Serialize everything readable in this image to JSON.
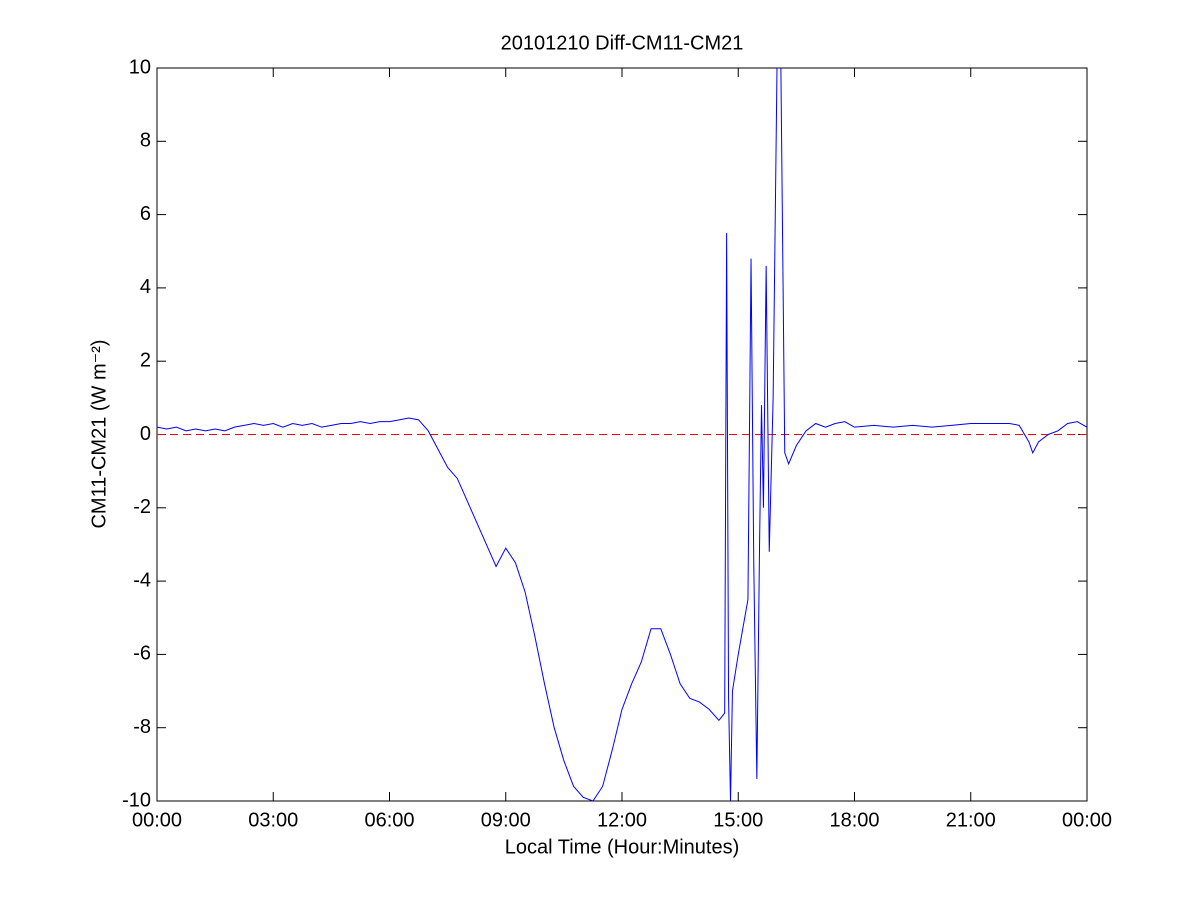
{
  "chart_data": {
    "type": "line",
    "title": "20101210 Diff-CM11-CM21",
    "xlabel": "Local Time (Hour:Minutes)",
    "ylabel": "CM11-CM21 (W m⁻²)",
    "x": [
      0,
      0.25,
      0.5,
      0.75,
      1,
      1.25,
      1.5,
      1.75,
      2,
      2.25,
      2.5,
      2.75,
      3,
      3.25,
      3.5,
      3.75,
      4,
      4.25,
      4.5,
      4.75,
      5,
      5.25,
      5.5,
      5.75,
      6,
      6.25,
      6.5,
      6.75,
      7,
      7.25,
      7.5,
      7.75,
      8,
      8.25,
      8.5,
      8.75,
      9,
      9.25,
      9.5,
      9.75,
      10,
      10.25,
      10.5,
      10.75,
      11,
      11.25,
      11.5,
      11.75,
      12,
      12.25,
      12.5,
      12.75,
      13,
      13.25,
      13.5,
      13.75,
      14,
      14.25,
      14.5,
      14.65,
      14.7,
      14.75,
      14.8,
      14.85,
      15,
      15.25,
      15.33,
      15.4,
      15.48,
      15.55,
      15.6,
      15.65,
      15.72,
      15.8,
      15.9,
      16,
      16.1,
      16.2,
      16.3,
      16.5,
      16.75,
      17,
      17.25,
      17.5,
      17.75,
      18,
      18.5,
      19,
      19.5,
      20,
      20.5,
      21,
      21.5,
      22,
      22.25,
      22.5,
      22.6,
      22.75,
      23,
      23.25,
      23.5,
      23.75,
      24
    ],
    "series": [
      {
        "name": "CM11-CM21",
        "color": "#0000ff",
        "values": [
          0.2,
          0.15,
          0.2,
          0.1,
          0.15,
          0.1,
          0.15,
          0.1,
          0.2,
          0.25,
          0.3,
          0.25,
          0.3,
          0.2,
          0.3,
          0.25,
          0.3,
          0.2,
          0.25,
          0.3,
          0.3,
          0.35,
          0.3,
          0.35,
          0.35,
          0.4,
          0.45,
          0.4,
          0.1,
          -0.4,
          -0.9,
          -1.2,
          -1.8,
          -2.4,
          -3.0,
          -3.6,
          -3.1,
          -3.5,
          -4.3,
          -5.5,
          -6.8,
          -8,
          -8.9,
          -9.6,
          -9.9,
          -10,
          -9.6,
          -8.6,
          -7.5,
          -6.8,
          -6.2,
          -5.3,
          -5.3,
          -6,
          -6.8,
          -7.2,
          -7.3,
          -7.5,
          -7.8,
          -7.6,
          5.5,
          -7.2,
          -10,
          -7,
          -6,
          -4.5,
          4.8,
          -3.5,
          -9.4,
          -3,
          0.8,
          -2,
          4.6,
          -3.2,
          1,
          10,
          10,
          -0.5,
          -0.8,
          -0.3,
          0.1,
          0.3,
          0.2,
          0.3,
          0.35,
          0.2,
          0.25,
          0.2,
          0.25,
          0.2,
          0.25,
          0.3,
          0.3,
          0.3,
          0.25,
          -0.2,
          -0.5,
          -0.2,
          0,
          0.1,
          0.3,
          0.35,
          0.2
        ]
      }
    ],
    "reference_line": {
      "value": 0,
      "color": "#ff0000"
    },
    "xlim": [
      0,
      24
    ],
    "xticks": [
      {
        "value": 0,
        "label": "00:00"
      },
      {
        "value": 3,
        "label": "03:00"
      },
      {
        "value": 6,
        "label": "06:00"
      },
      {
        "value": 9,
        "label": "09:00"
      },
      {
        "value": 12,
        "label": "12:00"
      },
      {
        "value": 15,
        "label": "15:00"
      },
      {
        "value": 18,
        "label": "18:00"
      },
      {
        "value": 21,
        "label": "21:00"
      },
      {
        "value": 24,
        "label": "00:00"
      }
    ],
    "ylim": [
      -10,
      10
    ],
    "yticks": [
      -10,
      -8,
      -6,
      -4,
      -2,
      0,
      2,
      4,
      6,
      8,
      10
    ]
  }
}
